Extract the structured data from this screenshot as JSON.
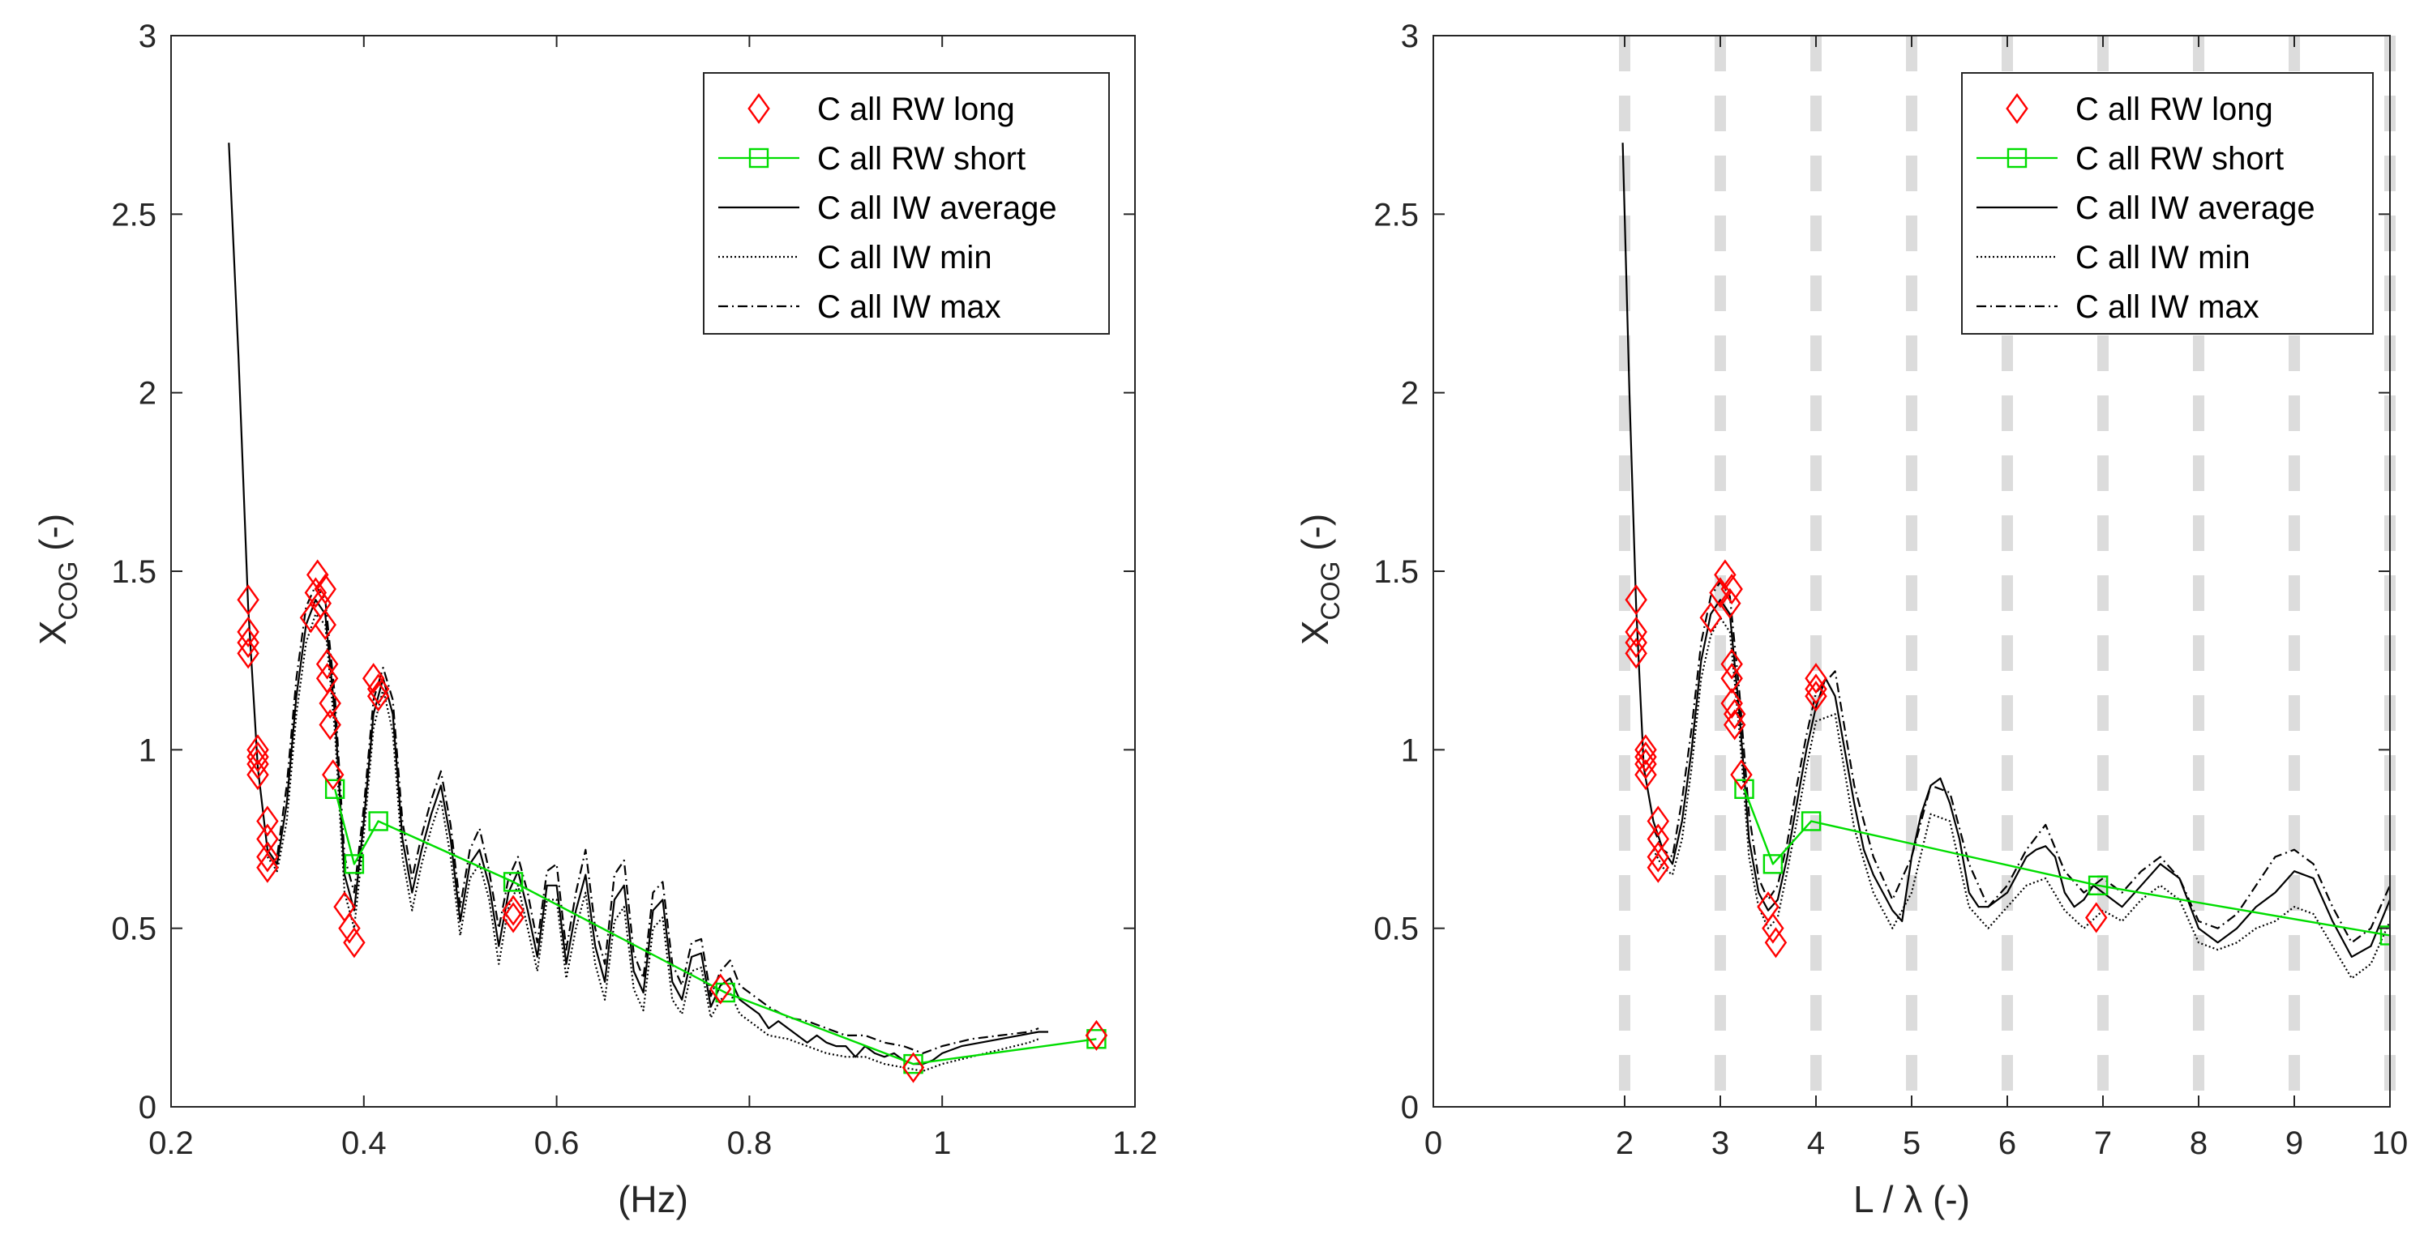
{
  "chart_data": [
    {
      "type": "line",
      "xlabel": "(Hz)",
      "ylabel_main": "X",
      "ylabel_sub": "COG",
      "ylabel_suffix": " (-)",
      "xlim": [
        0.2,
        1.2
      ],
      "ylim": [
        0,
        3
      ],
      "xticks": [
        0.2,
        0.4,
        0.6,
        0.8,
        1,
        1.2
      ],
      "xtick_labels": [
        "0.2",
        "0.4",
        "0.6",
        "0.8",
        "1",
        "1.2"
      ],
      "yticks": [
        0,
        0.5,
        1,
        1.5,
        2,
        2.5,
        3
      ],
      "ytick_labels": [
        "0",
        "0.5",
        "1",
        "1.5",
        "2",
        "2.5",
        "3"
      ],
      "legend": [
        "C all RW long",
        "C all RW short",
        "C all IW average",
        "C all IW min",
        "C all IW max"
      ],
      "legend_position": "top-right",
      "series": [
        {
          "name": "C all RW long",
          "style": "marker-diamond",
          "color": "#ff0000",
          "x": [
            0.28,
            0.28,
            0.28,
            0.28,
            0.29,
            0.29,
            0.29,
            0.29,
            0.3,
            0.3,
            0.3,
            0.3,
            0.345,
            0.35,
            0.352,
            0.355,
            0.36,
            0.36,
            0.362,
            0.362,
            0.365,
            0.365,
            0.368,
            0.38,
            0.385,
            0.39,
            0.41,
            0.415,
            0.415,
            0.555,
            0.555,
            0.77,
            0.97,
            1.16
          ],
          "y": [
            1.42,
            1.33,
            1.3,
            1.27,
            1.0,
            0.98,
            0.96,
            0.93,
            0.8,
            0.75,
            0.7,
            0.67,
            1.37,
            1.44,
            1.49,
            1.41,
            1.35,
            1.45,
            1.24,
            1.2,
            1.13,
            1.07,
            0.93,
            0.56,
            0.5,
            0.46,
            1.2,
            1.17,
            1.15,
            0.55,
            0.53,
            0.33,
            0.11,
            0.2
          ]
        },
        {
          "name": "C all RW short",
          "style": "line-square",
          "color": "#00dd00",
          "x": [
            0.37,
            0.39,
            0.415,
            0.555,
            0.775,
            0.97,
            1.16
          ],
          "y": [
            0.89,
            0.68,
            0.8,
            0.63,
            0.32,
            0.12,
            0.19
          ]
        },
        {
          "name": "C all IW average",
          "style": "solid",
          "color": "#000000",
          "x": [
            0.26,
            0.27,
            0.28,
            0.29,
            0.3,
            0.31,
            0.32,
            0.33,
            0.34,
            0.35,
            0.36,
            0.37,
            0.38,
            0.39,
            0.4,
            0.41,
            0.42,
            0.43,
            0.44,
            0.45,
            0.46,
            0.47,
            0.48,
            0.49,
            0.5,
            0.51,
            0.52,
            0.53,
            0.54,
            0.55,
            0.56,
            0.57,
            0.58,
            0.59,
            0.6,
            0.61,
            0.62,
            0.63,
            0.64,
            0.65,
            0.66,
            0.67,
            0.68,
            0.69,
            0.7,
            0.71,
            0.72,
            0.73,
            0.74,
            0.75,
            0.76,
            0.77,
            0.78,
            0.79,
            0.8,
            0.81,
            0.82,
            0.83,
            0.84,
            0.85,
            0.86,
            0.87,
            0.88,
            0.89,
            0.9,
            0.91,
            0.92,
            0.93,
            0.94,
            0.95,
            0.96,
            0.97,
            0.98,
            0.99,
            1.0,
            1.02,
            1.04,
            1.06,
            1.08,
            1.1,
            1.11
          ],
          "y": [
            2.7,
            2.1,
            1.4,
            0.95,
            0.72,
            0.68,
            0.85,
            1.15,
            1.35,
            1.42,
            1.38,
            1.1,
            0.65,
            0.55,
            0.8,
            1.1,
            1.2,
            1.1,
            0.75,
            0.6,
            0.72,
            0.82,
            0.9,
            0.75,
            0.52,
            0.68,
            0.72,
            0.62,
            0.45,
            0.6,
            0.66,
            0.55,
            0.42,
            0.62,
            0.62,
            0.4,
            0.55,
            0.65,
            0.45,
            0.35,
            0.58,
            0.62,
            0.38,
            0.32,
            0.55,
            0.58,
            0.35,
            0.3,
            0.42,
            0.43,
            0.28,
            0.34,
            0.36,
            0.3,
            0.28,
            0.26,
            0.22,
            0.24,
            0.22,
            0.2,
            0.18,
            0.2,
            0.18,
            0.17,
            0.17,
            0.14,
            0.17,
            0.15,
            0.14,
            0.15,
            0.13,
            0.12,
            0.12,
            0.13,
            0.15,
            0.17,
            0.18,
            0.19,
            0.2,
            0.21,
            0.21
          ]
        },
        {
          "name": "C all IW min",
          "style": "dotted",
          "color": "#000000",
          "x": [
            0.3,
            0.31,
            0.32,
            0.33,
            0.34,
            0.35,
            0.36,
            0.37,
            0.38,
            0.39,
            0.4,
            0.41,
            0.42,
            0.43,
            0.44,
            0.45,
            0.46,
            0.47,
            0.48,
            0.49,
            0.5,
            0.51,
            0.52,
            0.53,
            0.54,
            0.55,
            0.56,
            0.57,
            0.58,
            0.59,
            0.6,
            0.61,
            0.62,
            0.63,
            0.64,
            0.65,
            0.66,
            0.67,
            0.68,
            0.69,
            0.7,
            0.71,
            0.72,
            0.73,
            0.74,
            0.75,
            0.76,
            0.77,
            0.78,
            0.79,
            0.8,
            0.82,
            0.84,
            0.86,
            0.88,
            0.9,
            0.92,
            0.94,
            0.96,
            0.98,
            1.0,
            1.03,
            1.06,
            1.09,
            1.1
          ],
          "y": [
            0.7,
            0.66,
            0.8,
            1.1,
            1.3,
            1.38,
            1.35,
            1.05,
            0.6,
            0.5,
            0.76,
            1.06,
            1.17,
            1.05,
            0.7,
            0.55,
            0.68,
            0.78,
            0.86,
            0.7,
            0.48,
            0.64,
            0.68,
            0.58,
            0.4,
            0.56,
            0.62,
            0.5,
            0.38,
            0.58,
            0.58,
            0.36,
            0.5,
            0.6,
            0.4,
            0.3,
            0.52,
            0.56,
            0.33,
            0.27,
            0.5,
            0.53,
            0.3,
            0.26,
            0.38,
            0.39,
            0.25,
            0.3,
            0.32,
            0.26,
            0.24,
            0.2,
            0.19,
            0.17,
            0.15,
            0.14,
            0.14,
            0.12,
            0.11,
            0.1,
            0.12,
            0.14,
            0.16,
            0.18,
            0.19
          ]
        },
        {
          "name": "C all IW max",
          "style": "dashdot",
          "color": "#000000",
          "x": [
            0.3,
            0.31,
            0.32,
            0.33,
            0.34,
            0.35,
            0.36,
            0.37,
            0.38,
            0.39,
            0.4,
            0.41,
            0.42,
            0.43,
            0.44,
            0.45,
            0.46,
            0.47,
            0.48,
            0.49,
            0.5,
            0.51,
            0.52,
            0.53,
            0.54,
            0.55,
            0.56,
            0.57,
            0.58,
            0.59,
            0.6,
            0.61,
            0.62,
            0.63,
            0.64,
            0.65,
            0.66,
            0.67,
            0.68,
            0.69,
            0.7,
            0.71,
            0.72,
            0.73,
            0.74,
            0.75,
            0.76,
            0.77,
            0.78,
            0.79,
            0.8,
            0.82,
            0.84,
            0.86,
            0.88,
            0.9,
            0.92,
            0.94,
            0.96,
            0.98,
            1.0,
            1.03,
            1.06,
            1.09,
            1.1
          ],
          "y": [
            0.74,
            0.7,
            0.9,
            1.2,
            1.4,
            1.46,
            1.42,
            1.15,
            0.7,
            0.6,
            0.84,
            1.14,
            1.23,
            1.14,
            0.8,
            0.64,
            0.76,
            0.86,
            0.94,
            0.79,
            0.56,
            0.72,
            0.78,
            0.66,
            0.5,
            0.64,
            0.7,
            0.6,
            0.46,
            0.66,
            0.68,
            0.44,
            0.6,
            0.72,
            0.5,
            0.4,
            0.65,
            0.69,
            0.43,
            0.36,
            0.6,
            0.63,
            0.4,
            0.34,
            0.46,
            0.47,
            0.31,
            0.38,
            0.41,
            0.34,
            0.32,
            0.28,
            0.25,
            0.24,
            0.22,
            0.2,
            0.2,
            0.18,
            0.17,
            0.15,
            0.17,
            0.19,
            0.2,
            0.21,
            0.22
          ]
        }
      ]
    },
    {
      "type": "line",
      "xlabel": "L / λ (-)",
      "ylabel_main": "X",
      "ylabel_sub": "COG",
      "ylabel_suffix": " (-)",
      "xlim": [
        0,
        10
      ],
      "ylim": [
        0,
        3
      ],
      "xticks": [
        0,
        2,
        3,
        4,
        5,
        6,
        7,
        8,
        9,
        10
      ],
      "xtick_labels": [
        "0",
        "2",
        "3",
        "4",
        "5",
        "6",
        "7",
        "8",
        "9",
        "10"
      ],
      "yticks": [
        0,
        0.5,
        1,
        1.5,
        2,
        2.5,
        3
      ],
      "ytick_labels": [
        "0",
        "0.5",
        "1",
        "1.5",
        "2",
        "2.5",
        "3"
      ],
      "vertical_reference_lines": [
        2,
        3,
        4,
        5,
        6,
        7,
        8,
        9,
        10
      ],
      "legend": [
        "C all RW long",
        "C all RW short",
        "C all IW average",
        "C all IW min",
        "C all IW max"
      ],
      "legend_position": "top-right",
      "series": [
        {
          "name": "C all RW long",
          "style": "marker-diamond",
          "color": "#ff0000",
          "x": [
            2.12,
            2.12,
            2.12,
            2.12,
            2.22,
            2.22,
            2.22,
            2.22,
            2.35,
            2.35,
            2.35,
            2.35,
            2.9,
            3.0,
            3.05,
            3.1,
            3.12,
            3.12,
            3.12,
            3.12,
            3.15,
            3.15,
            3.22,
            3.5,
            3.55,
            3.58,
            4.0,
            4.0,
            4.0,
            6.93
          ],
          "y": [
            1.42,
            1.33,
            1.3,
            1.27,
            1.0,
            0.98,
            0.96,
            0.93,
            0.8,
            0.75,
            0.7,
            0.67,
            1.37,
            1.44,
            1.49,
            1.41,
            1.45,
            1.24,
            1.2,
            1.13,
            1.07,
            1.1,
            0.93,
            0.56,
            0.5,
            0.46,
            1.2,
            1.17,
            1.15,
            0.53
          ]
        },
        {
          "name": "C all RW short",
          "style": "line-square",
          "color": "#00dd00",
          "x": [
            3.25,
            3.55,
            3.95,
            6.95,
            10
          ],
          "y": [
            0.89,
            0.68,
            0.8,
            0.62,
            0.48
          ]
        },
        {
          "name": "C all IW average",
          "style": "solid",
          "color": "#000000",
          "x": [
            1.98,
            2.05,
            2.12,
            2.2,
            2.3,
            2.4,
            2.5,
            2.6,
            2.7,
            2.8,
            2.9,
            3.0,
            3.1,
            3.2,
            3.3,
            3.4,
            3.5,
            3.6,
            3.7,
            3.8,
            3.9,
            4.0,
            4.1,
            4.2,
            4.3,
            4.4,
            4.5,
            4.6,
            4.7,
            4.8,
            4.9,
            5.0,
            5.1,
            5.2,
            5.3,
            5.4,
            5.5,
            5.6,
            5.7,
            5.8,
            5.9,
            6.0,
            6.1,
            6.2,
            6.3,
            6.4,
            6.5,
            6.6,
            6.7,
            6.8,
            6.9,
            7.0,
            7.2,
            7.4,
            7.6,
            7.8,
            8.0,
            8.2,
            8.4,
            8.6,
            8.8,
            9.0,
            9.2,
            9.4,
            9.6,
            9.8,
            10.0
          ],
          "y": [
            2.7,
            2.0,
            1.4,
            0.95,
            0.8,
            0.72,
            0.68,
            0.8,
            1.0,
            1.25,
            1.38,
            1.42,
            1.38,
            1.1,
            0.75,
            0.6,
            0.55,
            0.58,
            0.7,
            0.85,
            1.0,
            1.12,
            1.2,
            1.15,
            1.0,
            0.85,
            0.72,
            0.65,
            0.6,
            0.55,
            0.52,
            0.7,
            0.82,
            0.9,
            0.92,
            0.85,
            0.75,
            0.6,
            0.56,
            0.56,
            0.58,
            0.6,
            0.65,
            0.7,
            0.72,
            0.73,
            0.7,
            0.6,
            0.56,
            0.58,
            0.62,
            0.6,
            0.56,
            0.62,
            0.68,
            0.64,
            0.5,
            0.46,
            0.5,
            0.56,
            0.6,
            0.66,
            0.64,
            0.52,
            0.42,
            0.45,
            0.58
          ]
        },
        {
          "name": "C all IW min",
          "style": "dotted",
          "color": "#000000",
          "x": [
            2.3,
            2.4,
            2.5,
            2.6,
            2.7,
            2.8,
            2.9,
            3.0,
            3.1,
            3.2,
            3.3,
            3.4,
            3.5,
            3.6,
            3.7,
            3.8,
            3.9,
            4.0,
            4.2,
            4.4,
            4.6,
            4.8,
            5.0,
            5.2,
            5.4,
            5.6,
            5.8,
            6.0,
            6.2,
            6.4,
            6.6,
            6.8,
            7.0,
            7.2,
            7.4,
            7.6,
            7.8,
            8.0,
            8.2,
            8.4,
            8.6,
            8.8,
            9.0,
            9.2,
            9.4,
            9.6,
            9.8,
            10.0
          ],
          "y": [
            0.72,
            0.67,
            0.65,
            0.75,
            0.95,
            1.2,
            1.32,
            1.37,
            1.33,
            1.05,
            0.7,
            0.56,
            0.5,
            0.53,
            0.66,
            0.8,
            0.95,
            1.08,
            1.1,
            0.78,
            0.6,
            0.5,
            0.6,
            0.82,
            0.8,
            0.56,
            0.5,
            0.56,
            0.62,
            0.64,
            0.55,
            0.5,
            0.55,
            0.52,
            0.58,
            0.62,
            0.58,
            0.46,
            0.44,
            0.46,
            0.5,
            0.52,
            0.56,
            0.54,
            0.45,
            0.36,
            0.4,
            0.52
          ]
        },
        {
          "name": "C all IW max",
          "style": "dashdot",
          "color": "#000000",
          "x": [
            2.3,
            2.4,
            2.5,
            2.6,
            2.7,
            2.8,
            2.9,
            3.0,
            3.1,
            3.2,
            3.3,
            3.4,
            3.5,
            3.6,
            3.7,
            3.8,
            3.9,
            4.0,
            4.2,
            4.4,
            4.6,
            4.8,
            5.0,
            5.2,
            5.4,
            5.6,
            5.8,
            6.0,
            6.2,
            6.4,
            6.6,
            6.8,
            7.0,
            7.2,
            7.4,
            7.6,
            7.8,
            8.0,
            8.2,
            8.4,
            8.6,
            8.8,
            9.0,
            9.2,
            9.4,
            9.6,
            9.8,
            10.0
          ],
          "y": [
            0.78,
            0.72,
            0.7,
            0.86,
            1.06,
            1.3,
            1.43,
            1.47,
            1.43,
            1.16,
            0.82,
            0.64,
            0.58,
            0.62,
            0.74,
            0.9,
            1.04,
            1.16,
            1.22,
            0.9,
            0.7,
            0.58,
            0.7,
            0.9,
            0.88,
            0.68,
            0.56,
            0.62,
            0.72,
            0.79,
            0.66,
            0.6,
            0.64,
            0.6,
            0.66,
            0.7,
            0.64,
            0.52,
            0.5,
            0.54,
            0.62,
            0.7,
            0.72,
            0.68,
            0.56,
            0.46,
            0.5,
            0.62
          ]
        }
      ]
    }
  ]
}
